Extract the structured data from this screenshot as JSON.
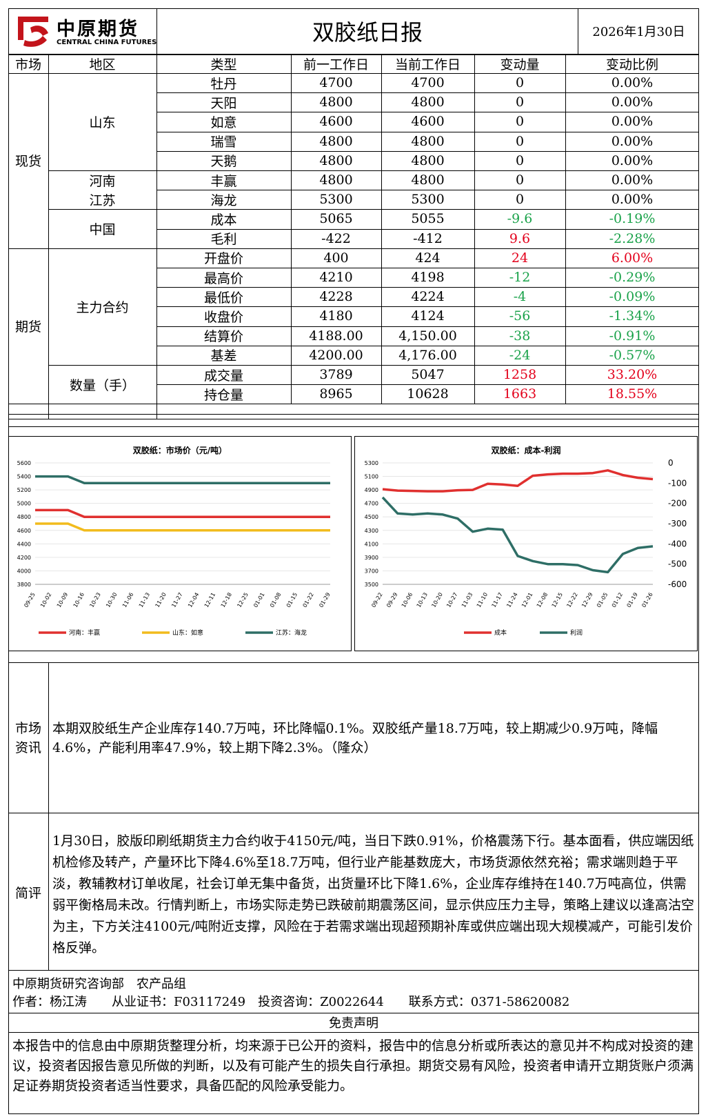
{
  "header": {
    "logo_cn": "中原期货",
    "logo_en": "CENTRAL CHINA FUTURES",
    "title": "双胶纸日报",
    "date": "2026年1月30日"
  },
  "table": {
    "columns": [
      "市场",
      "地区",
      "类型",
      "前一工作日",
      "当前工作日",
      "变动量",
      "变动比例"
    ],
    "groups": {
      "spot": "现货",
      "futures": "期货"
    },
    "regions": {
      "shandong": "山东",
      "henan": "河南",
      "jiangsu": "江苏",
      "china": "中国",
      "main_contract": "主力合约",
      "quantity": "数量（手）"
    },
    "rows": [
      {
        "type": "牡丹",
        "prev": "4700",
        "curr": "4700",
        "chg": "0",
        "pct": "0.00%",
        "color": "#000000"
      },
      {
        "type": "天阳",
        "prev": "4800",
        "curr": "4800",
        "chg": "0",
        "pct": "0.00%",
        "color": "#000000"
      },
      {
        "type": "如意",
        "prev": "4600",
        "curr": "4600",
        "chg": "0",
        "pct": "0.00%",
        "color": "#000000"
      },
      {
        "type": "瑞雪",
        "prev": "4800",
        "curr": "4800",
        "chg": "0",
        "pct": "0.00%",
        "color": "#000000"
      },
      {
        "type": "天鹅",
        "prev": "4800",
        "curr": "4800",
        "chg": "0",
        "pct": "0.00%",
        "color": "#000000"
      },
      {
        "type": "丰赢",
        "prev": "4800",
        "curr": "4800",
        "chg": "0",
        "pct": "0.00%",
        "color": "#000000"
      },
      {
        "type": "海龙",
        "prev": "5300",
        "curr": "5300",
        "chg": "0",
        "pct": "0.00%",
        "color": "#000000"
      },
      {
        "type": "成本",
        "prev": "5065",
        "curr": "5055",
        "chg": "-9.6",
        "pct": "-0.19%",
        "color": "#1aa24a"
      },
      {
        "type": "毛利",
        "prev": "-422",
        "curr": "-412",
        "chg": "9.6",
        "pct": "-2.28%",
        "color_chg": "#e3001b",
        "color": "#1aa24a"
      },
      {
        "type": "开盘价",
        "prev": "400",
        "curr": "424",
        "chg": "24",
        "pct": "6.00%",
        "color": "#e3001b"
      },
      {
        "type": "最高价",
        "prev": "4210",
        "curr": "4198",
        "chg": "-12",
        "pct": "-0.29%",
        "color": "#1aa24a"
      },
      {
        "type": "最低价",
        "prev": "4228",
        "curr": "4224",
        "chg": "-4",
        "pct": "-0.09%",
        "color": "#1aa24a"
      },
      {
        "type": "收盘价",
        "prev": "4180",
        "curr": "4124",
        "chg": "-56",
        "pct": "-1.34%",
        "color": "#1aa24a"
      },
      {
        "type": "结算价",
        "prev": "4188.00",
        "curr": "4,150.00",
        "chg": "-38",
        "pct": "-0.91%",
        "color": "#1aa24a"
      },
      {
        "type": "基差",
        "prev": "4200.00",
        "curr": "4,176.00",
        "chg": "-24",
        "pct": "-0.57%",
        "color": "#1aa24a"
      },
      {
        "type": "成交量",
        "prev": "3789",
        "curr": "5047",
        "chg": "1258",
        "pct": "33.20%",
        "color": "#e3001b"
      },
      {
        "type": "持仓量",
        "prev": "8965",
        "curr": "10628",
        "chg": "1663",
        "pct": "18.55%",
        "color": "#e3001b"
      }
    ]
  },
  "chart_data": [
    {
      "type": "line",
      "title": "双胶纸：市场价（元/吨）",
      "x": [
        "09-25",
        "10-02",
        "10-09",
        "10-16",
        "10-23",
        "10-30",
        "11-06",
        "11-13",
        "11-20",
        "11-27",
        "12-04",
        "12-11",
        "12-18",
        "12-25",
        "01-01",
        "01-08",
        "01-15",
        "01-22",
        "01-29"
      ],
      "ylim": [
        3800,
        5600
      ],
      "yticks": [
        3800,
        4000,
        4200,
        4400,
        4600,
        4800,
        5000,
        5200,
        5400,
        5600
      ],
      "legend_position": "bottom",
      "series": [
        {
          "name": "河南：丰赢",
          "color": "#e0302f",
          "values": [
            4900,
            4900,
            4900,
            4800,
            4800,
            4800,
            4800,
            4800,
            4800,
            4800,
            4800,
            4800,
            4800,
            4800,
            4800,
            4800,
            4800,
            4800,
            4800
          ]
        },
        {
          "name": "山东：如意",
          "color": "#f2bb1d",
          "values": [
            4700,
            4700,
            4700,
            4600,
            4600,
            4600,
            4600,
            4600,
            4600,
            4600,
            4600,
            4600,
            4600,
            4600,
            4600,
            4600,
            4600,
            4600,
            4600
          ]
        },
        {
          "name": "江苏：海龙",
          "color": "#2e6e66",
          "values": [
            5400,
            5400,
            5400,
            5300,
            5300,
            5300,
            5300,
            5300,
            5300,
            5300,
            5300,
            5300,
            5300,
            5300,
            5300,
            5300,
            5300,
            5300,
            5300
          ]
        }
      ]
    },
    {
      "type": "line",
      "title": "双胶纸：成本-利润",
      "x": [
        "09-22",
        "09-29",
        "10-06",
        "10-13",
        "10-20",
        "10-27",
        "11-03",
        "11-10",
        "11-17",
        "11-24",
        "12-01",
        "12-08",
        "12-15",
        "12-22",
        "12-29",
        "01-05",
        "01-12",
        "01-19",
        "01-26"
      ],
      "ylim_left": [
        3500,
        5300
      ],
      "yticks_left": [
        3500,
        3700,
        3900,
        4100,
        4300,
        4500,
        4700,
        4900,
        5100,
        5300
      ],
      "ylim_right": [
        -600,
        0
      ],
      "yticks_right": [
        0,
        -100,
        -200,
        -300,
        -400,
        -500,
        -600
      ],
      "legend_position": "bottom",
      "series": [
        {
          "name": "成本",
          "axis": "left",
          "color": "#e0302f",
          "values": [
            4910,
            4890,
            4885,
            4880,
            4880,
            4895,
            4900,
            4990,
            4980,
            4960,
            5110,
            5130,
            5140,
            5140,
            5150,
            5190,
            5120,
            5080,
            5060
          ]
        },
        {
          "name": "利润",
          "axis": "right",
          "color": "#2e6e66",
          "values": [
            -170,
            -250,
            -255,
            -250,
            -255,
            -275,
            -340,
            -325,
            -330,
            -460,
            -485,
            -500,
            -500,
            -505,
            -530,
            -540,
            -450,
            -420,
            -412
          ]
        }
      ]
    }
  ],
  "market_info": {
    "label_1": "市场",
    "label_2": "资讯",
    "text": "本期双胶纸生产企业库存140.7万吨，环比降幅0.1%。双胶纸产量18.7万吨，较上期减少0.9万吨，降幅4.6%，产能利用率47.9%，较上期下降2.3%。（隆众）"
  },
  "commentary": {
    "label": "简评",
    "text": "1月30日，胶版印刷纸期货主力合约收于4150元/吨，当日下跌0.91%，价格震荡下行。基本面看，供应端因纸机检修及转产，产量环比下降4.6%至18.7万吨，但行业产能基数庞大，市场货源依然充裕；需求端则趋于平淡，教辅教材订单收尾，社会订单无集中备货，出货量环比下降1.6%，企业库存维持在140.7万吨高位，供需弱平衡格局未改。行情判断上，市场实际走势已跌破前期震荡区间，显示供应压力主导，策略上建议以逢高沽空为主，下方关注4100元/吨附近支撑，风险在于若需求端出现超预期补库或供应端出现大规模减产，可能引发价格反弹。"
  },
  "footer": {
    "dept": "中原期货研究咨询部　农产品组",
    "author": "作者：杨江涛　　从业证书：F03117249　投资咨询：Z0022644　　联系方式：0371-58620082",
    "disclaimer_title": "免责声明",
    "disclaimer": "本报告中的信息由中原期货整理分析，均来源于已公开的资料，报告中的信息分析或所表达的意见并不构成对投资的建议，投资者因报告意见所做的判断，以及有可能产生的损失自行承担。期货交易有风险，投资者申请开立期货账户须满足证券期货投资者适当性要求，具备匹配的风险承受能力。"
  }
}
